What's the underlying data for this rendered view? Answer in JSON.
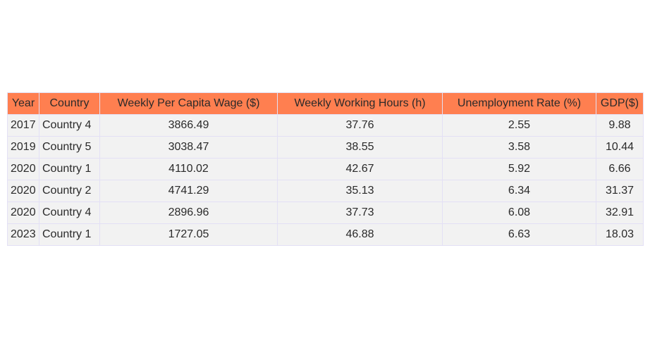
{
  "colors": {
    "header_bg": "#ff7f50",
    "cell_bg": "#f2f2f2",
    "border": "#e3e0f5"
  },
  "chart_data": {
    "type": "table",
    "columns": [
      "Year",
      "Country",
      "Weekly Per Capita Wage ($)",
      "Weekly Working Hours (h)",
      "Unemployment Rate (%)",
      "GDP($)"
    ],
    "rows": [
      [
        "2017",
        "Country 4",
        "3866.49",
        "37.76",
        "2.55",
        "9.88"
      ],
      [
        "2019",
        "Country 5",
        "3038.47",
        "38.55",
        "3.58",
        "10.44"
      ],
      [
        "2020",
        "Country 1",
        "4110.02",
        "42.67",
        "5.92",
        "6.66"
      ],
      [
        "2020",
        "Country 2",
        "4741.29",
        "35.13",
        "6.34",
        "31.37"
      ],
      [
        "2020",
        "Country 4",
        "2896.96",
        "37.73",
        "6.08",
        "32.91"
      ],
      [
        "2023",
        "Country 1",
        "1727.05",
        "46.88",
        "6.63",
        "18.03"
      ]
    ]
  }
}
